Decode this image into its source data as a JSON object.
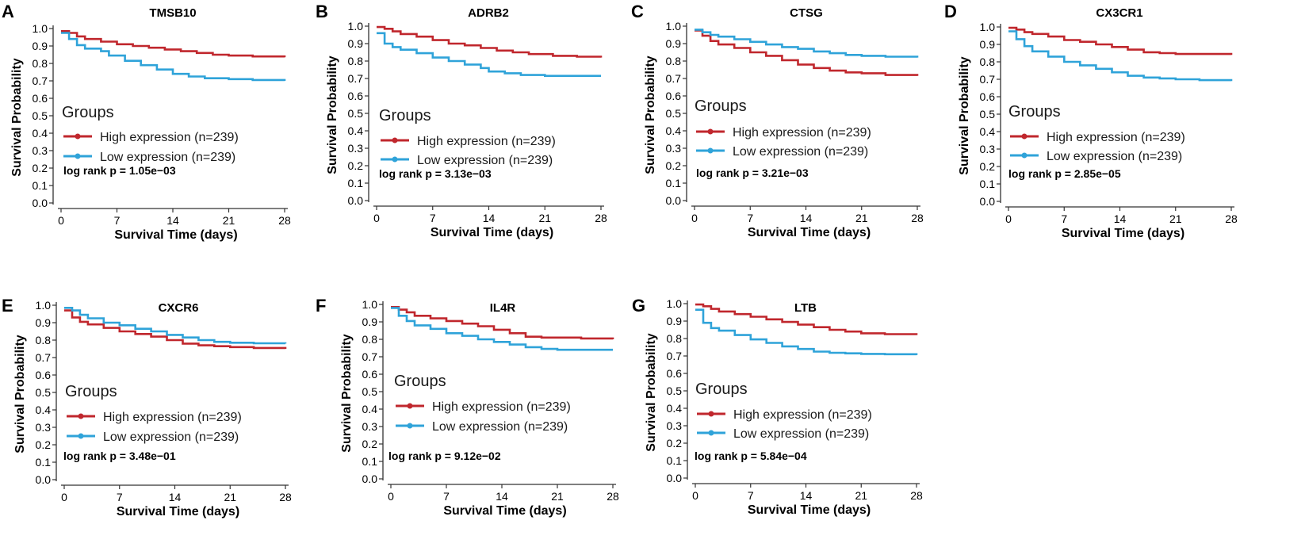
{
  "figure": {
    "legend_title": "Groups",
    "xlabel": "Survival Time (days)",
    "ylabel": "Survival Probability",
    "xticks": [
      0,
      7,
      14,
      21,
      28
    ],
    "yticks": [
      "0.0",
      "0.1",
      "0.2",
      "0.3",
      "0.4",
      "0.5",
      "0.6",
      "0.7",
      "0.8",
      "0.9",
      "1.0"
    ],
    "colors": {
      "high": "#c0272d",
      "low": "#2fa3d9"
    }
  },
  "chart_data": [
    {
      "type": "line",
      "letter": "A",
      "title": "TMSB10",
      "xlabel": "Survival Time (days)",
      "ylabel": "Survival Probability",
      "xlim": [
        0,
        28
      ],
      "ylim": [
        0,
        1
      ],
      "legend": "Groups",
      "legend_position": "middle-left",
      "pvalue": "log rank p = 1.05e−03",
      "series": [
        {
          "name": "High expression (n=239)",
          "x": [
            0,
            1,
            2,
            3,
            5,
            7,
            9,
            11,
            13,
            15,
            17,
            19,
            21,
            24,
            28
          ],
          "y": [
            0.985,
            0.975,
            0.955,
            0.94,
            0.925,
            0.91,
            0.9,
            0.89,
            0.88,
            0.87,
            0.86,
            0.85,
            0.845,
            0.84,
            0.835
          ]
        },
        {
          "name": "Low expression (n=239)",
          "x": [
            0,
            1,
            2,
            3,
            5,
            6,
            8,
            10,
            12,
            14,
            16,
            18,
            21,
            24,
            28
          ],
          "y": [
            0.975,
            0.94,
            0.905,
            0.885,
            0.87,
            0.845,
            0.815,
            0.79,
            0.765,
            0.74,
            0.725,
            0.715,
            0.71,
            0.705,
            0.7
          ]
        }
      ]
    },
    {
      "type": "line",
      "letter": "B",
      "title": "ADRB2",
      "xlabel": "Survival Time (days)",
      "ylabel": "Survival Probability",
      "xlim": [
        0,
        28
      ],
      "ylim": [
        0,
        1
      ],
      "legend": "Groups",
      "legend_position": "middle-left",
      "pvalue": "log rank p = 3.13e−03",
      "series": [
        {
          "name": "High expression (n=239)",
          "x": [
            0,
            1,
            2,
            3,
            5,
            7,
            9,
            11,
            13,
            15,
            17,
            19,
            22,
            25,
            28
          ],
          "y": [
            0.995,
            0.985,
            0.97,
            0.955,
            0.94,
            0.92,
            0.9,
            0.89,
            0.875,
            0.86,
            0.85,
            0.84,
            0.83,
            0.825,
            0.82
          ]
        },
        {
          "name": "Low expression (n=239)",
          "x": [
            0,
            1,
            2,
            3,
            5,
            7,
            9,
            11,
            13,
            14,
            16,
            18,
            21,
            24,
            28
          ],
          "y": [
            0.96,
            0.9,
            0.88,
            0.865,
            0.845,
            0.82,
            0.8,
            0.78,
            0.76,
            0.74,
            0.73,
            0.72,
            0.715,
            0.715,
            0.715
          ]
        }
      ]
    },
    {
      "type": "line",
      "letter": "C",
      "title": "CTSG",
      "xlabel": "Survival Time (days)",
      "ylabel": "Survival Probability",
      "xlim": [
        0,
        28
      ],
      "ylim": [
        0,
        1
      ],
      "legend": "Groups",
      "legend_position": "middle-left",
      "pvalue": "log rank p = 3.21e−03",
      "series": [
        {
          "name": "High expression (n=239)",
          "x": [
            0,
            1,
            2,
            3,
            5,
            7,
            9,
            11,
            13,
            15,
            17,
            19,
            21,
            24,
            28
          ],
          "y": [
            0.975,
            0.945,
            0.915,
            0.895,
            0.875,
            0.85,
            0.83,
            0.805,
            0.78,
            0.76,
            0.745,
            0.735,
            0.73,
            0.72,
            0.715
          ]
        },
        {
          "name": "Low expression (n=239)",
          "x": [
            0,
            1,
            2,
            3,
            5,
            7,
            9,
            11,
            13,
            15,
            17,
            19,
            21,
            24,
            28
          ],
          "y": [
            0.98,
            0.965,
            0.95,
            0.94,
            0.925,
            0.91,
            0.895,
            0.88,
            0.87,
            0.855,
            0.845,
            0.835,
            0.83,
            0.825,
            0.82
          ]
        }
      ]
    },
    {
      "type": "line",
      "letter": "D",
      "title": "CX3CR1",
      "xlabel": "Survival Time (days)",
      "ylabel": "Survival Probability",
      "xlim": [
        0,
        28
      ],
      "ylim": [
        0,
        1
      ],
      "legend": "Groups",
      "legend_position": "middle-left",
      "pvalue": "log rank p = 2.85e−05",
      "series": [
        {
          "name": "High expression (n=239)",
          "x": [
            0,
            1,
            2,
            3,
            5,
            7,
            9,
            11,
            13,
            15,
            17,
            19,
            21,
            24,
            28
          ],
          "y": [
            0.995,
            0.985,
            0.97,
            0.96,
            0.945,
            0.925,
            0.915,
            0.9,
            0.885,
            0.87,
            0.855,
            0.85,
            0.845,
            0.845,
            0.84
          ]
        },
        {
          "name": "Low expression (n=239)",
          "x": [
            0,
            1,
            2,
            3,
            5,
            7,
            9,
            11,
            13,
            15,
            17,
            19,
            21,
            24,
            28
          ],
          "y": [
            0.975,
            0.93,
            0.89,
            0.86,
            0.83,
            0.8,
            0.78,
            0.76,
            0.74,
            0.72,
            0.71,
            0.705,
            0.7,
            0.695,
            0.69
          ]
        }
      ]
    },
    {
      "type": "line",
      "letter": "E",
      "title": "CXCR6",
      "xlabel": "Survival Time (days)",
      "ylabel": "Survival Probability",
      "xlim": [
        0,
        28
      ],
      "ylim": [
        0,
        1
      ],
      "legend": "Groups",
      "legend_position": "lower-left",
      "pvalue": "log rank p = 3.48e−01",
      "series": [
        {
          "name": "High expression (n=239)",
          "x": [
            0,
            1,
            2,
            3,
            5,
            7,
            9,
            11,
            13,
            15,
            17,
            19,
            21,
            24,
            28
          ],
          "y": [
            0.97,
            0.93,
            0.905,
            0.89,
            0.87,
            0.85,
            0.835,
            0.82,
            0.8,
            0.78,
            0.77,
            0.765,
            0.76,
            0.755,
            0.75
          ]
        },
        {
          "name": "Low expression (n=239)",
          "x": [
            0,
            1,
            2,
            3,
            5,
            7,
            9,
            11,
            13,
            15,
            17,
            19,
            21,
            24,
            28
          ],
          "y": [
            0.985,
            0.97,
            0.945,
            0.925,
            0.9,
            0.885,
            0.865,
            0.85,
            0.83,
            0.815,
            0.8,
            0.79,
            0.785,
            0.782,
            0.78
          ]
        }
      ]
    },
    {
      "type": "line",
      "letter": "F",
      "title": "IL4R",
      "xlabel": "Survival Time (days)",
      "ylabel": "Survival Probability",
      "xlim": [
        0,
        28
      ],
      "ylim": [
        0,
        1
      ],
      "legend": "Groups",
      "legend_position": "lower-left",
      "pvalue": "log rank p = 9.12e−02",
      "series": [
        {
          "name": "High expression (n=239)",
          "x": [
            0,
            1,
            2,
            3,
            5,
            7,
            9,
            11,
            13,
            15,
            17,
            19,
            21,
            24,
            28
          ],
          "y": [
            0.985,
            0.97,
            0.955,
            0.935,
            0.92,
            0.905,
            0.89,
            0.875,
            0.855,
            0.835,
            0.815,
            0.81,
            0.81,
            0.805,
            0.8
          ]
        },
        {
          "name": "Low expression (n=239)",
          "x": [
            0,
            1,
            2,
            3,
            5,
            7,
            9,
            11,
            13,
            15,
            17,
            19,
            21,
            24,
            28
          ],
          "y": [
            0.98,
            0.935,
            0.905,
            0.88,
            0.86,
            0.835,
            0.82,
            0.8,
            0.785,
            0.77,
            0.755,
            0.745,
            0.74,
            0.74,
            0.74
          ]
        }
      ]
    },
    {
      "type": "line",
      "letter": "G",
      "title": "LTB",
      "xlabel": "Survival Time (days)",
      "ylabel": "Survival Probability",
      "xlim": [
        0,
        28
      ],
      "ylim": [
        0,
        1
      ],
      "legend": "Groups",
      "legend_position": "lower-left",
      "pvalue": "log rank p = 5.84e−04",
      "series": [
        {
          "name": "High expression (n=239)",
          "x": [
            0,
            1,
            2,
            3,
            5,
            7,
            9,
            11,
            13,
            15,
            17,
            19,
            21,
            24,
            28
          ],
          "y": [
            0.995,
            0.985,
            0.97,
            0.955,
            0.94,
            0.925,
            0.91,
            0.895,
            0.88,
            0.865,
            0.85,
            0.84,
            0.83,
            0.825,
            0.82
          ]
        },
        {
          "name": "Low expression (n=239)",
          "x": [
            0,
            1,
            2,
            3,
            5,
            7,
            9,
            11,
            13,
            15,
            17,
            19,
            21,
            24,
            28
          ],
          "y": [
            0.965,
            0.89,
            0.86,
            0.845,
            0.82,
            0.795,
            0.775,
            0.755,
            0.74,
            0.725,
            0.718,
            0.715,
            0.712,
            0.71,
            0.705
          ]
        }
      ]
    }
  ]
}
